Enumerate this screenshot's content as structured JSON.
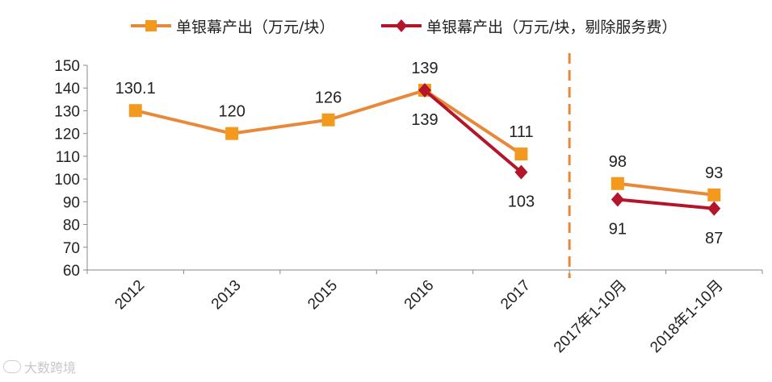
{
  "chart_data": {
    "type": "line",
    "categories": [
      "2012",
      "2013",
      "2015",
      "2016",
      "2017",
      "2017年1-10月",
      "2018年1-10月"
    ],
    "series": [
      {
        "name": "单银幕产出（万元/块）",
        "color": "#e8893a",
        "marker": "square",
        "values": [
          130.1,
          120,
          126,
          139,
          111,
          98,
          93
        ],
        "labels": [
          "130.1",
          "120",
          "126",
          "139",
          "111",
          "98",
          "93"
        ]
      },
      {
        "name": "单银幕产出（万元/块，剔除服务费）",
        "color": "#b5152b",
        "marker": "diamond",
        "values": [
          null,
          null,
          null,
          139,
          103,
          91,
          87
        ],
        "labels": [
          null,
          null,
          null,
          "139",
          "103",
          "91",
          "87"
        ]
      }
    ],
    "ylim": [
      60,
      150
    ],
    "yticks": [
      "60",
      "70",
      "80",
      "90",
      "100",
      "110",
      "120",
      "130",
      "140",
      "150"
    ],
    "xlabel": "",
    "ylabel": "",
    "grid": false,
    "legend_position": "top",
    "separator_between": [
      "2017",
      "2017年1-10月"
    ],
    "separator_color": "#e8893a"
  },
  "watermark": {
    "text": "大数跨境",
    "icon": "brand-logo-icon"
  }
}
